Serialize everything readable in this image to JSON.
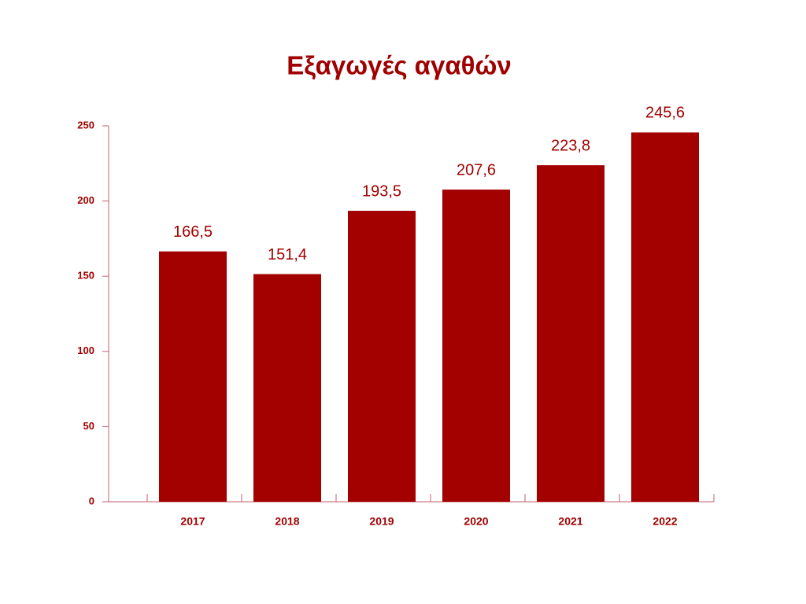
{
  "chart_data": {
    "type": "bar",
    "title": "Εξαγωγές αγαθών",
    "categories": [
      "2017",
      "2018",
      "2019",
      "2020",
      "2021",
      "2022"
    ],
    "values": [
      166.5,
      151.4,
      193.5,
      207.6,
      223.8,
      245.6
    ],
    "value_labels": [
      "166,5",
      "151,4",
      "193,5",
      "207,6",
      "223,8",
      "245,6"
    ],
    "color": "#a30000",
    "ylim": [
      0,
      250
    ],
    "yticks": [
      0,
      50,
      100,
      150,
      200,
      250
    ],
    "grid": false
  }
}
